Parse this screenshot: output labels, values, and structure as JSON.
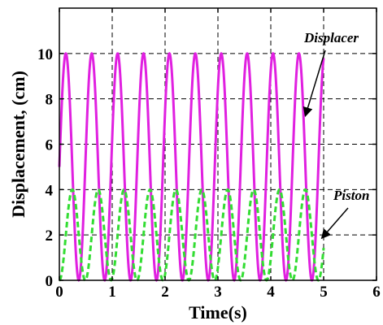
{
  "chart_data": {
    "type": "line",
    "xlabel": "Time(s)",
    "ylabel": "Displacement, (cm)",
    "xlim": [
      0,
      6
    ],
    "ylim": [
      0,
      12
    ],
    "xticks": [
      "0",
      "1",
      "2",
      "3",
      "4",
      "5",
      "6"
    ],
    "yticks": [
      "0",
      "2",
      "4",
      "6",
      "8",
      "10"
    ],
    "grid": true,
    "series": [
      {
        "name": "Displacer",
        "color": "#e020e0",
        "style": "solid",
        "x_range": [
          0,
          5
        ],
        "period": 0.49,
        "amplitude": 5,
        "offset": 5,
        "start_value": 5,
        "peak_times": [
          0.12,
          0.61,
          1.1,
          1.59,
          2.08,
          2.57,
          3.06,
          3.55,
          4.04,
          4.53
        ],
        "peak_value": 10,
        "trough_value": 0
      },
      {
        "name": "Piston",
        "color": "#33dd33",
        "style": "dashed",
        "x_range": [
          0,
          5
        ],
        "period": 0.49,
        "amplitude": 2,
        "offset": 2,
        "start_value": 0,
        "peak_times": [
          0.245,
          0.735,
          1.225,
          1.715,
          2.205,
          2.695,
          3.185,
          3.675,
          4.165,
          4.655
        ],
        "peak_value": 4,
        "trough_value": 0
      }
    ],
    "annotations": [
      {
        "label": "Displacer",
        "series": "Displacer"
      },
      {
        "label": "Piston",
        "series": "Piston"
      }
    ]
  }
}
